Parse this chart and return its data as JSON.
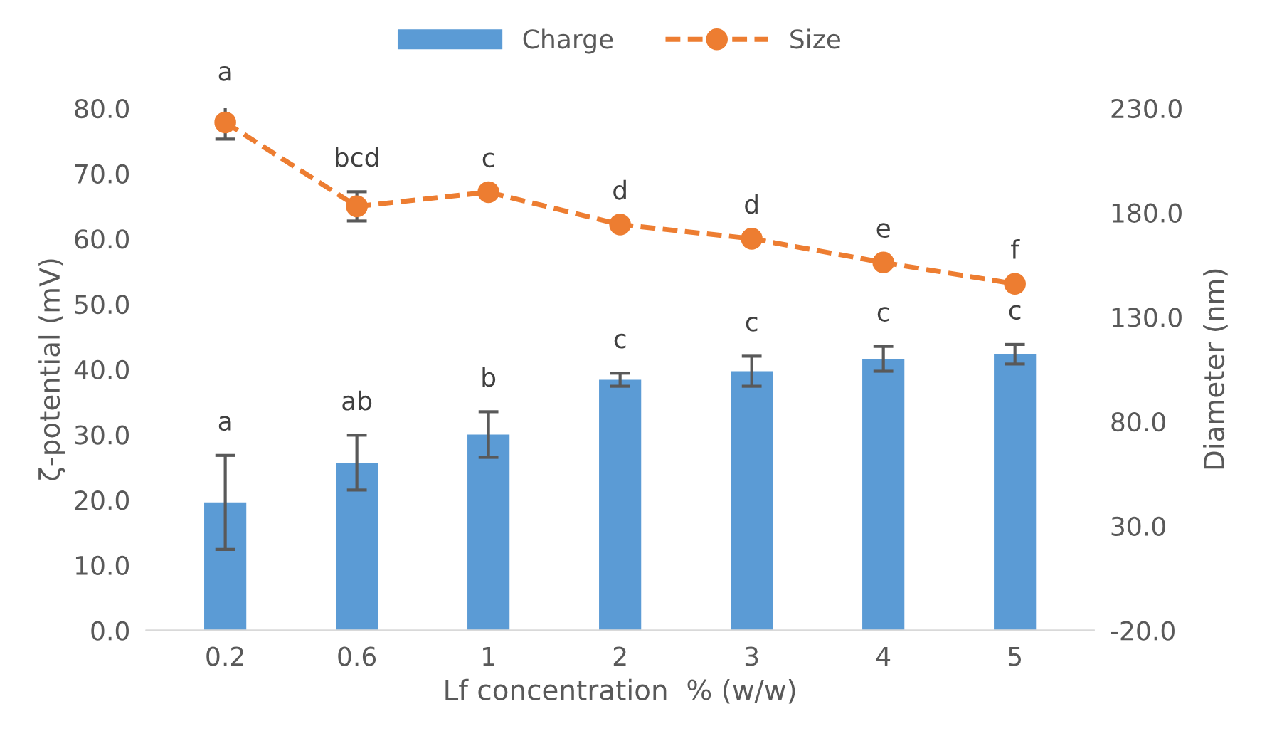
{
  "chart_data": {
    "type": "bar",
    "xlabel": "Lf concentration  % (w/w)",
    "ylabel": "ζ-potential (mV)",
    "y2label": "Diameter (nm)",
    "categories": [
      "0.2",
      "0.6",
      "1",
      "2",
      "3",
      "4",
      "5"
    ],
    "series": [
      {
        "name": "Charge",
        "color": "#5b9bd5",
        "values": [
          19.6,
          25.7,
          30.0,
          38.4,
          39.7,
          41.6,
          42.3
        ],
        "errors": [
          7.2,
          4.2,
          3.5,
          1.0,
          2.3,
          1.9,
          1.5
        ]
      },
      {
        "name": "Size",
        "type": "line",
        "axis": "y2",
        "color": "#ed7d31",
        "marker": "circle",
        "line_style": "dashed",
        "values": [
          223.2,
          183.0,
          189.8,
          174.3,
          167.5,
          156.1,
          145.9
        ],
        "errors": [
          8,
          7,
          null,
          null,
          null,
          null,
          null
        ]
      }
    ],
    "ylim": [
      0,
      80
    ],
    "yticks": [
      {
        "value": 0,
        "label": "0.0"
      },
      {
        "value": 10,
        "label": "10.0"
      },
      {
        "value": 20,
        "label": "20.0"
      },
      {
        "value": 30,
        "label": "30.0"
      },
      {
        "value": 40,
        "label": "40.0"
      },
      {
        "value": 50,
        "label": "50.0"
      },
      {
        "value": 60,
        "label": "60.0"
      },
      {
        "value": 70,
        "label": "70.0"
      },
      {
        "value": 80,
        "label": "80.0"
      }
    ],
    "y2lim": [
      -20,
      230
    ],
    "y2ticks": [
      {
        "value": -20,
        "label": "-20.0"
      },
      {
        "value": 30,
        "label": "30.0"
      },
      {
        "value": 80,
        "label": "80.0"
      },
      {
        "value": 130,
        "label": "130.0"
      },
      {
        "value": 180,
        "label": "180.0"
      },
      {
        "value": 230,
        "label": "230.0"
      }
    ],
    "annotations": [
      "a",
      "ab",
      "b",
      "c",
      "c",
      "c",
      "c",
      "a",
      "bcd",
      "c",
      "d",
      "d",
      "e",
      "f"
    ],
    "legend": "top",
    "grid": false
  }
}
